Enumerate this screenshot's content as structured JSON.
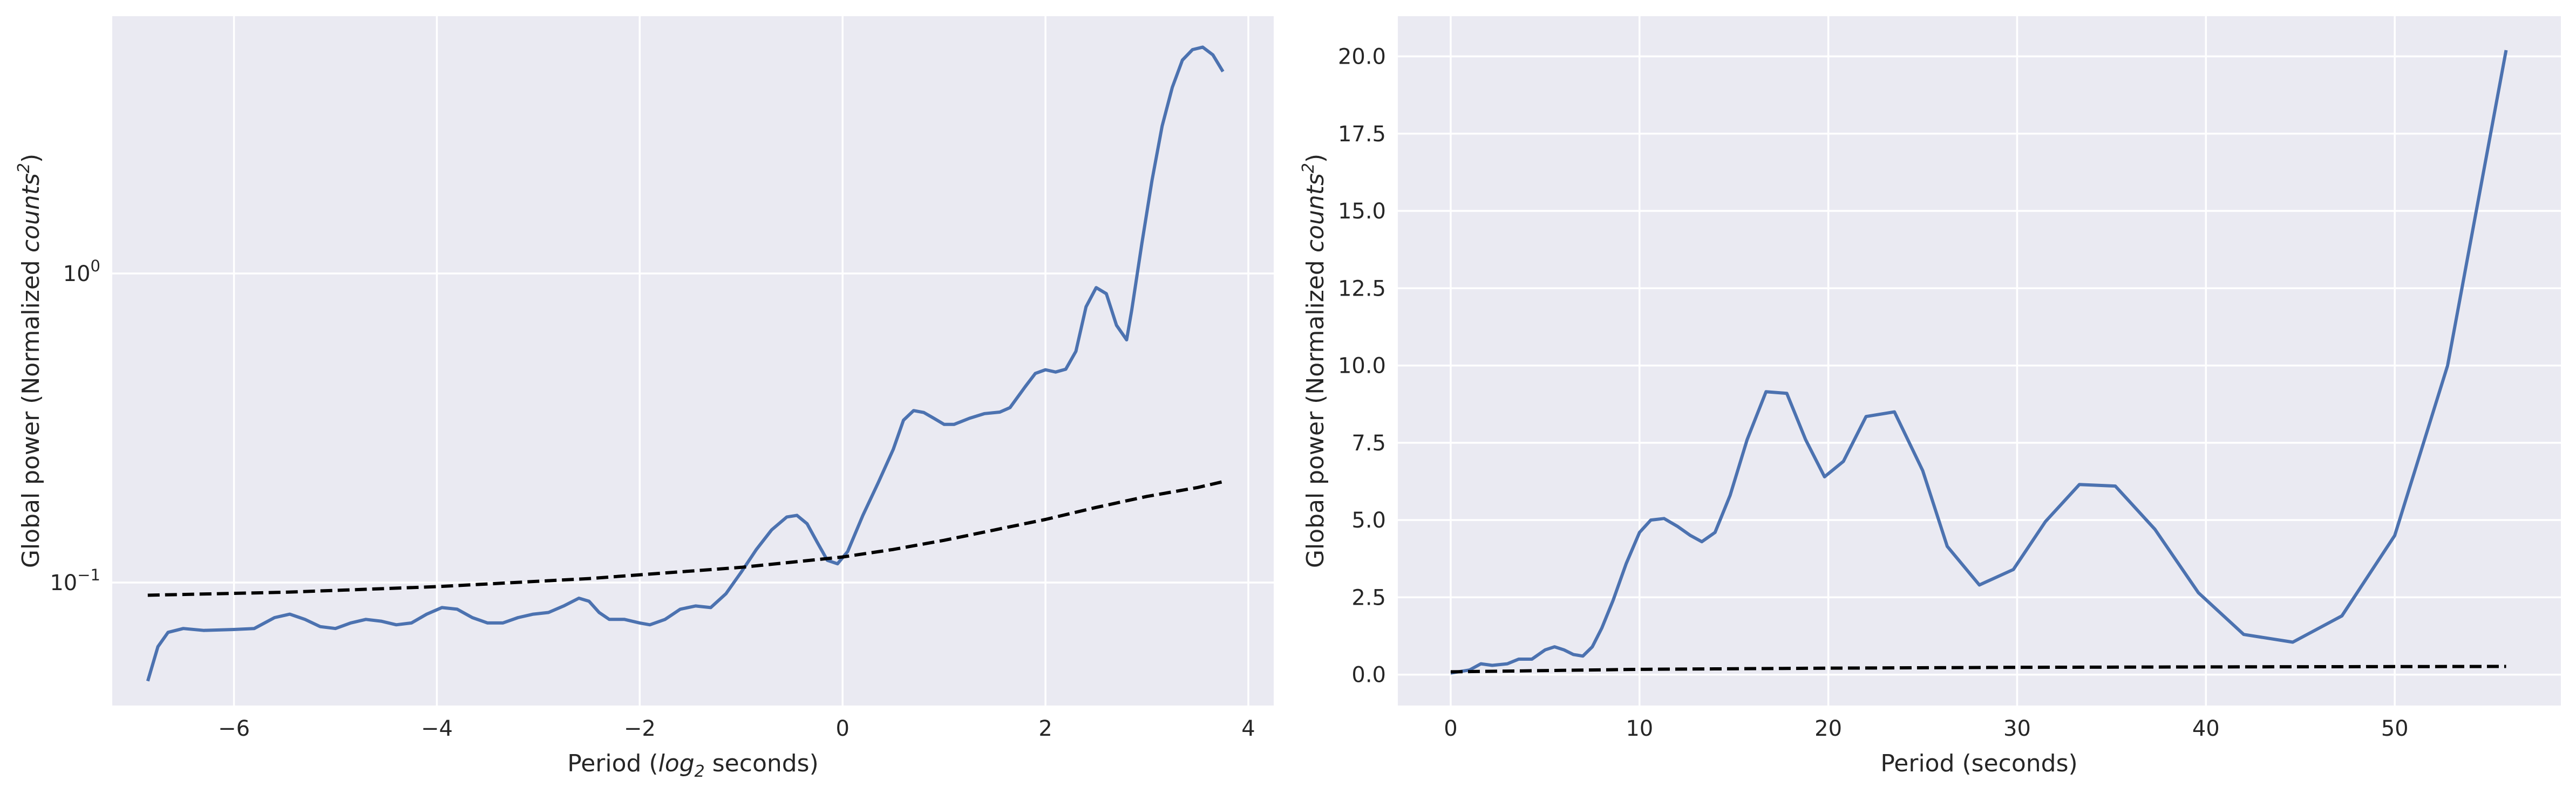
{
  "chart_data": [
    {
      "type": "line",
      "xlabel": "Period (log2 seconds)",
      "xlabel_parts": [
        "Period (",
        "log",
        "2",
        " seconds)"
      ],
      "ylabel": "Global power (Normalized counts²)",
      "ylabel_parts": [
        "Global power (Normalized ",
        "counts",
        "2",
        ")"
      ],
      "yscale": "log",
      "xlim": [
        -7.2,
        4.25
      ],
      "ylim": [
        0.04,
        6.8
      ],
      "xticks": [
        -6,
        -4,
        -2,
        0,
        2,
        4
      ],
      "xtick_labels": [
        "−6",
        "−4",
        "−2",
        "0",
        "2",
        "4"
      ],
      "yticks": [
        1,
        0.1
      ],
      "ytick_labels": [
        {
          "base": "10",
          "exp": "0"
        },
        {
          "base": "10",
          "exp": "−1"
        }
      ],
      "grid": true,
      "series": [
        {
          "style": "solid",
          "color": "#4c72b0",
          "points": [
            [
              -6.85,
              0.048
            ],
            [
              -6.75,
              0.062
            ],
            [
              -6.65,
              0.069
            ],
            [
              -6.5,
              0.071
            ],
            [
              -6.3,
              0.07
            ],
            [
              -6.0,
              0.0705
            ],
            [
              -5.8,
              0.071
            ],
            [
              -5.6,
              0.077
            ],
            [
              -5.45,
              0.079
            ],
            [
              -5.3,
              0.076
            ],
            [
              -5.15,
              0.072
            ],
            [
              -5.0,
              0.071
            ],
            [
              -4.85,
              0.074
            ],
            [
              -4.7,
              0.076
            ],
            [
              -4.55,
              0.075
            ],
            [
              -4.4,
              0.073
            ],
            [
              -4.25,
              0.074
            ],
            [
              -4.1,
              0.079
            ],
            [
              -3.95,
              0.083
            ],
            [
              -3.8,
              0.082
            ],
            [
              -3.65,
              0.077
            ],
            [
              -3.5,
              0.074
            ],
            [
              -3.35,
              0.074
            ],
            [
              -3.2,
              0.077
            ],
            [
              -3.05,
              0.079
            ],
            [
              -2.9,
              0.08
            ],
            [
              -2.75,
              0.084
            ],
            [
              -2.6,
              0.089
            ],
            [
              -2.5,
              0.087
            ],
            [
              -2.4,
              0.08
            ],
            [
              -2.3,
              0.076
            ],
            [
              -2.15,
              0.076
            ],
            [
              -2.0,
              0.074
            ],
            [
              -1.9,
              0.073
            ],
            [
              -1.75,
              0.076
            ],
            [
              -1.6,
              0.082
            ],
            [
              -1.45,
              0.084
            ],
            [
              -1.3,
              0.083
            ],
            [
              -1.15,
              0.092
            ],
            [
              -1.0,
              0.108
            ],
            [
              -0.85,
              0.128
            ],
            [
              -0.7,
              0.148
            ],
            [
              -0.55,
              0.163
            ],
            [
              -0.45,
              0.165
            ],
            [
              -0.35,
              0.155
            ],
            [
              -0.25,
              0.135
            ],
            [
              -0.15,
              0.118
            ],
            [
              -0.05,
              0.115
            ],
            [
              0.05,
              0.126
            ],
            [
              0.2,
              0.165
            ],
            [
              0.35,
              0.21
            ],
            [
              0.5,
              0.27
            ],
            [
              0.6,
              0.335
            ],
            [
              0.7,
              0.36
            ],
            [
              0.8,
              0.355
            ],
            [
              0.9,
              0.34
            ],
            [
              1.0,
              0.325
            ],
            [
              1.1,
              0.325
            ],
            [
              1.25,
              0.34
            ],
            [
              1.4,
              0.352
            ],
            [
              1.55,
              0.356
            ],
            [
              1.65,
              0.368
            ],
            [
              1.8,
              0.43
            ],
            [
              1.9,
              0.475
            ],
            [
              2.0,
              0.488
            ],
            [
              2.1,
              0.48
            ],
            [
              2.2,
              0.49
            ],
            [
              2.3,
              0.56
            ],
            [
              2.4,
              0.78
            ],
            [
              2.5,
              0.9
            ],
            [
              2.6,
              0.86
            ],
            [
              2.7,
              0.68
            ],
            [
              2.8,
              0.61
            ],
            [
              2.85,
              0.76
            ],
            [
              2.95,
              1.25
            ],
            [
              3.05,
              2.0
            ],
            [
              3.15,
              3.0
            ],
            [
              3.25,
              4.0
            ],
            [
              3.35,
              4.9
            ],
            [
              3.45,
              5.3
            ],
            [
              3.55,
              5.4
            ],
            [
              3.65,
              5.1
            ],
            [
              3.75,
              4.5
            ]
          ]
        },
        {
          "style": "dashed",
          "color": "#000000",
          "points": [
            [
              -6.85,
              0.091
            ],
            [
              -5.5,
              0.093
            ],
            [
              -4.0,
              0.097
            ],
            [
              -2.5,
              0.103
            ],
            [
              -1.0,
              0.112
            ],
            [
              0.0,
              0.121
            ],
            [
              0.5,
              0.128
            ],
            [
              1.0,
              0.137
            ],
            [
              1.5,
              0.148
            ],
            [
              2.0,
              0.16
            ],
            [
              2.5,
              0.175
            ],
            [
              3.0,
              0.19
            ],
            [
              3.5,
              0.203
            ],
            [
              3.75,
              0.212
            ]
          ]
        }
      ]
    },
    {
      "type": "line",
      "xlabel": "Period (seconds)",
      "ylabel": "Global power (Normalized counts²)",
      "ylabel_parts": [
        "Global power (Normalized ",
        "counts",
        "2",
        ")"
      ],
      "yscale": "linear",
      "xlim": [
        -2.8,
        58.8
      ],
      "ylim": [
        -1.0,
        21.3
      ],
      "xticks": [
        0,
        10,
        20,
        30,
        40,
        50
      ],
      "xtick_labels": [
        "0",
        "10",
        "20",
        "30",
        "40",
        "50"
      ],
      "yticks": [
        0.0,
        2.5,
        5.0,
        7.5,
        10.0,
        12.5,
        15.0,
        17.5,
        20.0
      ],
      "ytick_labels": [
        "0.0",
        "2.5",
        "5.0",
        "7.5",
        "10.0",
        "12.5",
        "15.0",
        "17.5",
        "20.0"
      ],
      "grid": true,
      "series": [
        {
          "style": "solid",
          "color": "#4c72b0",
          "points": [
            [
              0.0,
              0.05
            ],
            [
              1.0,
              0.15
            ],
            [
              1.6,
              0.35
            ],
            [
              2.2,
              0.3
            ],
            [
              3.0,
              0.35
            ],
            [
              3.6,
              0.5
            ],
            [
              4.3,
              0.5
            ],
            [
              5.0,
              0.8
            ],
            [
              5.5,
              0.9
            ],
            [
              6.0,
              0.8
            ],
            [
              6.5,
              0.65
            ],
            [
              7.0,
              0.6
            ],
            [
              7.5,
              0.9
            ],
            [
              8.0,
              1.5
            ],
            [
              8.6,
              2.4
            ],
            [
              9.3,
              3.6
            ],
            [
              10.0,
              4.6
            ],
            [
              10.6,
              5.0
            ],
            [
              11.3,
              5.05
            ],
            [
              12.0,
              4.8
            ],
            [
              12.7,
              4.5
            ],
            [
              13.3,
              4.3
            ],
            [
              14.0,
              4.6
            ],
            [
              14.8,
              5.8
            ],
            [
              15.7,
              7.6
            ],
            [
              16.7,
              9.15
            ],
            [
              17.8,
              9.1
            ],
            [
              18.8,
              7.6
            ],
            [
              19.8,
              6.4
            ],
            [
              20.8,
              6.9
            ],
            [
              22.0,
              8.35
            ],
            [
              23.5,
              8.5
            ],
            [
              25.0,
              6.6
            ],
            [
              26.3,
              4.15
            ],
            [
              28.0,
              2.9
            ],
            [
              29.8,
              3.4
            ],
            [
              31.5,
              4.95
            ],
            [
              33.3,
              6.15
            ],
            [
              35.2,
              6.1
            ],
            [
              37.3,
              4.7
            ],
            [
              39.6,
              2.65
            ],
            [
              42.0,
              1.3
            ],
            [
              44.6,
              1.05
            ],
            [
              47.2,
              1.9
            ],
            [
              50.0,
              4.5
            ],
            [
              52.8,
              10.0
            ],
            [
              55.9,
              20.2
            ]
          ]
        },
        {
          "style": "dashed",
          "color": "#000000",
          "points": [
            [
              0.0,
              0.09
            ],
            [
              10.0,
              0.17
            ],
            [
              20.0,
              0.21
            ],
            [
              30.0,
              0.235
            ],
            [
              40.0,
              0.25
            ],
            [
              50.0,
              0.26
            ],
            [
              55.9,
              0.265
            ]
          ]
        }
      ]
    }
  ]
}
